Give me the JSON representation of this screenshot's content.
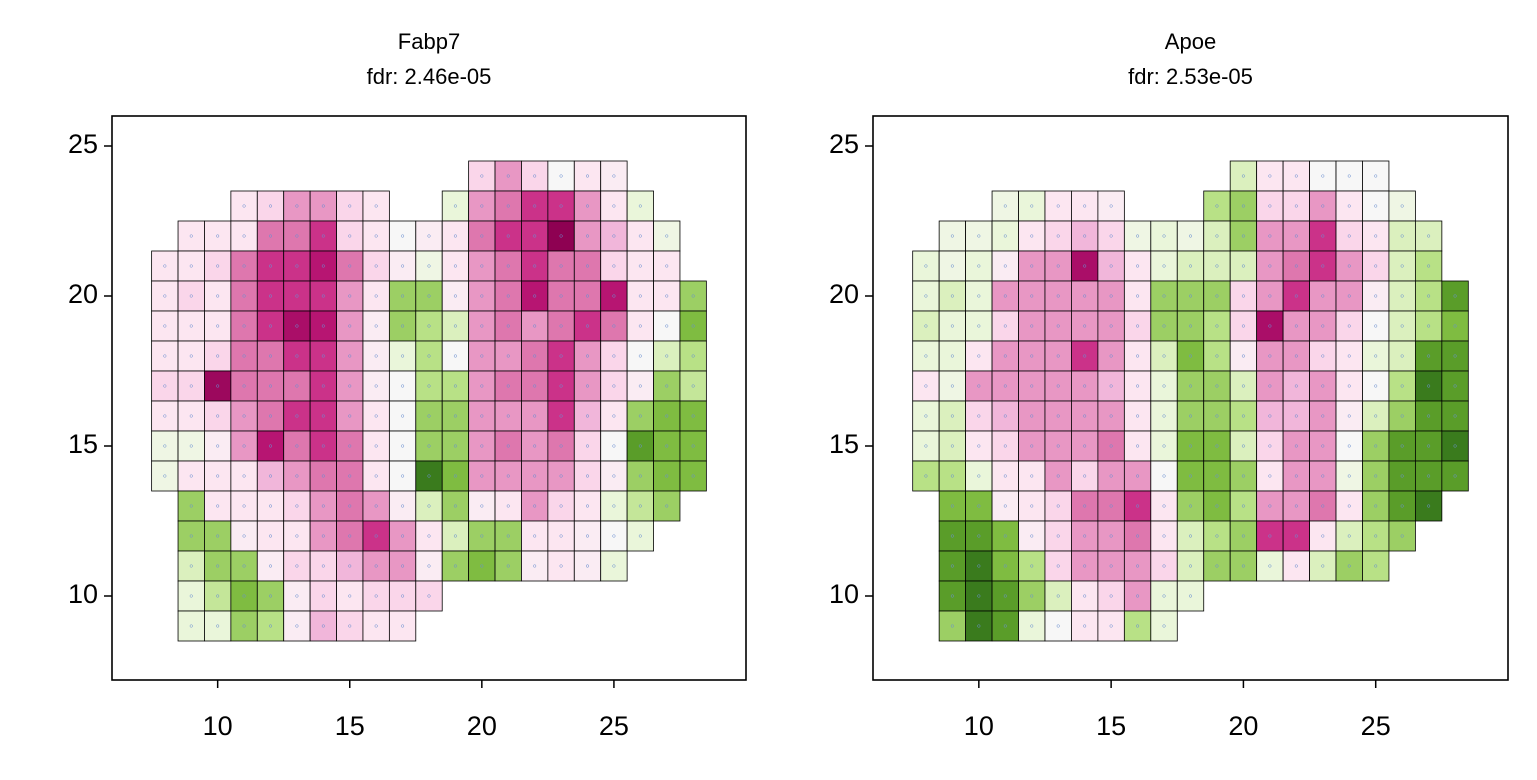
{
  "chart_data": [
    {
      "type": "heatmap",
      "title": "Fabp7",
      "subtitle": "fdr: 2.46e-05",
      "cmap": "PiYG",
      "vlim": [
        -2,
        2
      ],
      "xlim": [
        6,
        30
      ],
      "ylim": [
        7.2,
        26
      ],
      "xticks": [
        10,
        15,
        20,
        25
      ],
      "yticks": [
        10,
        15,
        20,
        25
      ],
      "x": [
        8,
        9,
        10,
        11,
        12,
        13,
        14,
        15,
        16,
        17,
        18,
        19,
        20,
        21,
        22,
        23,
        24,
        25,
        26,
        27,
        28
      ],
      "y": [
        24,
        23,
        22,
        21,
        20,
        19,
        18,
        17,
        16,
        15,
        14,
        13,
        12,
        11,
        10,
        9
      ],
      "z": [
        [
          null,
          null,
          null,
          null,
          null,
          null,
          null,
          null,
          null,
          null,
          null,
          null,
          0.5,
          1,
          0.5,
          0,
          0.3,
          0.2,
          null,
          null,
          null
        ],
        [
          null,
          null,
          null,
          0.3,
          0.5,
          1,
          1,
          0.5,
          0.3,
          null,
          null,
          -0.3,
          1,
          1.2,
          1.5,
          1.5,
          1,
          0.3,
          -0.3,
          null,
          null
        ],
        [
          null,
          0.3,
          0.3,
          0.3,
          1.2,
          1.2,
          1.5,
          0.5,
          0.3,
          0,
          0.2,
          0.3,
          1.2,
          1.5,
          1.5,
          2,
          1,
          0.8,
          0.3,
          -0.2,
          null
        ],
        [
          0.3,
          0.3,
          0.5,
          1.2,
          1.5,
          1.5,
          1.7,
          1.2,
          0.5,
          0.2,
          -0.2,
          0.3,
          1,
          1.2,
          1.5,
          1.2,
          1.2,
          0.5,
          0.3,
          0.3,
          null
        ],
        [
          0.3,
          0.5,
          0.3,
          1.2,
          1.5,
          1.5,
          1.5,
          1,
          0.3,
          -1,
          -1,
          0.2,
          1,
          1.2,
          1.7,
          1.2,
          1.2,
          1.7,
          0.3,
          0.3,
          -1
        ],
        [
          0.3,
          0.3,
          0.3,
          1.2,
          1.5,
          1.8,
          1.7,
          1,
          0.2,
          -1,
          -0.8,
          -0.5,
          1,
          1.2,
          1,
          1.2,
          1.5,
          1.2,
          0.3,
          0,
          -1.2
        ],
        [
          0.3,
          0.3,
          0.5,
          1.2,
          1.2,
          1.5,
          1.5,
          1,
          0.2,
          -0.3,
          -0.8,
          0,
          1,
          1,
          1.2,
          1.5,
          1,
          0.5,
          0,
          -0.5,
          -0.8
        ],
        [
          0.5,
          0.5,
          1.9,
          1.2,
          1.2,
          1.2,
          1.5,
          1,
          0.2,
          0,
          -0.8,
          -0.8,
          1,
          1.2,
          1.2,
          1.5,
          1,
          0.5,
          0.2,
          -1,
          -0.7
        ],
        [
          0.3,
          0.3,
          0.5,
          1,
          1.2,
          1.5,
          1.5,
          1,
          0.3,
          0,
          -1,
          -1,
          1,
          1,
          1,
          1.5,
          0.8,
          0.3,
          -1,
          -1.2,
          -1.2
        ],
        [
          -0.2,
          -0.2,
          0.2,
          1,
          1.7,
          1.2,
          1.5,
          1.2,
          0.3,
          0,
          -1,
          -1,
          1,
          1.2,
          1,
          1.2,
          0.5,
          0,
          -1.5,
          -1.2,
          -1.2
        ],
        [
          -0.2,
          0.3,
          0.3,
          0.3,
          0.8,
          1,
          1.2,
          1.2,
          0.3,
          0,
          -1.8,
          -1.2,
          1,
          1,
          1,
          1,
          0.5,
          0.2,
          -1,
          -1.2,
          -1.2
        ],
        [
          null,
          -1,
          0.3,
          0.3,
          0.3,
          0.5,
          1,
          1.2,
          1,
          0.2,
          -0.5,
          -1,
          0.2,
          0.3,
          1,
          0.5,
          0.3,
          -0.3,
          -0.7,
          -1,
          null
        ],
        [
          null,
          -1,
          -1,
          0.2,
          0.3,
          0.3,
          1,
          1.2,
          1.5,
          1,
          0.3,
          -0.5,
          -1,
          -1,
          0.3,
          0.3,
          0.2,
          0,
          -0.3,
          null,
          null
        ],
        [
          null,
          -0.5,
          -1,
          -1,
          0.2,
          0.5,
          0.5,
          0.8,
          1,
          1,
          0.2,
          -1,
          -1.2,
          -1,
          0.2,
          0.3,
          0.2,
          -0.3,
          null,
          null,
          null
        ],
        [
          null,
          -0.3,
          -0.7,
          -1.2,
          -1,
          0.2,
          0.5,
          0.3,
          0.5,
          0.5,
          0.5,
          null,
          null,
          null,
          null,
          null,
          null,
          null,
          null,
          null,
          null
        ],
        [
          null,
          -0.3,
          -0.3,
          -1,
          -0.8,
          0.2,
          0.8,
          0.5,
          0.3,
          0.3,
          null,
          null,
          null,
          null,
          null,
          null,
          null,
          null,
          null,
          null,
          null
        ]
      ]
    },
    {
      "type": "heatmap",
      "title": "Apoe",
      "subtitle": "fdr: 2.53e-05",
      "cmap": "PiYG",
      "vlim": [
        -2,
        2
      ],
      "xlim": [
        6,
        30
      ],
      "ylim": [
        7.2,
        26
      ],
      "xticks": [
        10,
        15,
        20,
        25
      ],
      "yticks": [
        10,
        15,
        20,
        25
      ],
      "x": [
        8,
        9,
        10,
        11,
        12,
        13,
        14,
        15,
        16,
        17,
        18,
        19,
        20,
        21,
        22,
        23,
        24,
        25,
        26,
        27,
        28
      ],
      "y": [
        24,
        23,
        22,
        21,
        20,
        19,
        18,
        17,
        16,
        15,
        14,
        13,
        12,
        11,
        10,
        9
      ],
      "z": [
        [
          null,
          null,
          null,
          null,
          null,
          null,
          null,
          null,
          null,
          null,
          null,
          null,
          -0.5,
          0.3,
          0.3,
          0,
          0,
          0,
          null,
          null,
          null
        ],
        [
          null,
          null,
          null,
          -0.2,
          -0.3,
          0.3,
          0.3,
          0.2,
          null,
          null,
          null,
          -0.8,
          -1,
          0.5,
          0.5,
          1,
          0.3,
          0,
          -0.2,
          null,
          null
        ],
        [
          null,
          -0.2,
          -0.2,
          -0.3,
          0.3,
          0.5,
          0.8,
          0.5,
          -0.2,
          -0.3,
          -0.2,
          -0.5,
          -1,
          1,
          1,
          1.5,
          0.5,
          0.3,
          -0.5,
          -0.5,
          null
        ],
        [
          -0.3,
          -0.2,
          -0.3,
          0.2,
          1,
          1,
          1.8,
          0.8,
          0.3,
          -0.3,
          -0.5,
          -0.5,
          -0.5,
          1,
          1.2,
          1.5,
          1,
          0.5,
          -0.5,
          -0.8,
          null
        ],
        [
          -0.3,
          -0.5,
          -0.3,
          1,
          1,
          1,
          1,
          1,
          0.3,
          -1,
          -1,
          -1,
          0.5,
          1,
          1.5,
          1,
          1,
          0.2,
          -0.5,
          -0.8,
          -1.5
        ],
        [
          -0.5,
          -0.3,
          -0.3,
          0.5,
          1,
          1,
          1,
          1,
          0.5,
          -1,
          -1,
          -0.8,
          0.5,
          1.8,
          1,
          1,
          0.5,
          0,
          -0.5,
          -0.8,
          -1.2
        ],
        [
          -0.3,
          -0.3,
          0.3,
          1,
          1,
          1,
          1.5,
          1,
          0.3,
          -0.5,
          -1.2,
          -0.8,
          0.2,
          1,
          1,
          0.5,
          0.3,
          -0.3,
          -0.5,
          -1.5,
          -1.5
        ],
        [
          0.3,
          -0.2,
          1,
          1,
          1,
          1,
          1,
          0.8,
          0.3,
          -0.3,
          -1,
          -1,
          -0.5,
          1,
          0.8,
          1,
          0.3,
          0,
          -0.8,
          -1.8,
          -1.5
        ],
        [
          -0.3,
          -0.5,
          0.5,
          0.8,
          1,
          1,
          1,
          1,
          0.3,
          -0.3,
          -1,
          -1,
          -0.8,
          0.8,
          0.8,
          1,
          0.2,
          -0.5,
          -1,
          -1.5,
          -1.5
        ],
        [
          -0.3,
          -0.5,
          0.3,
          0.5,
          1,
          1,
          1,
          1.2,
          0.3,
          -0.3,
          -1.2,
          -1.2,
          -0.5,
          0.5,
          1,
          1,
          0,
          -1,
          -1.5,
          -1.5,
          -1.8
        ],
        [
          -0.8,
          -0.8,
          -0.3,
          0.3,
          0.3,
          1,
          0.5,
          1,
          1,
          0,
          -1.2,
          -1.2,
          -1,
          0.3,
          1,
          1,
          -0.2,
          -1,
          -1.5,
          -1.5,
          -1.5
        ],
        [
          null,
          -1.2,
          -1.2,
          0.2,
          0.3,
          0.5,
          1.2,
          1.2,
          1.5,
          0.3,
          -1,
          -1.2,
          -0.8,
          1,
          1,
          1.2,
          0.3,
          -1,
          -1.5,
          -1.8,
          null
        ],
        [
          null,
          -1.5,
          -1.5,
          -1.2,
          0.2,
          0.5,
          1,
          1,
          1.2,
          0.3,
          -0.5,
          -0.8,
          -1,
          1.5,
          1.5,
          0.3,
          -0.5,
          -0.8,
          -1,
          null,
          null
        ],
        [
          null,
          -1.5,
          -1.8,
          -1.2,
          -0.8,
          0.5,
          1,
          1,
          1,
          0.5,
          -0.5,
          -1,
          -1,
          -0.3,
          0.3,
          -0.5,
          -1,
          -0.8,
          null,
          null,
          null
        ],
        [
          null,
          -1.5,
          -1.8,
          -1.5,
          -1,
          -0.5,
          0.3,
          0.5,
          1,
          -0.3,
          -0.3,
          null,
          null,
          null,
          null,
          null,
          null,
          null,
          null,
          null,
          null
        ],
        [
          null,
          -1,
          -1.8,
          -1.5,
          -0.3,
          0,
          0.3,
          0.3,
          -0.8,
          -0.3,
          null,
          null,
          null,
          null,
          null,
          null,
          null,
          null,
          null,
          null,
          null
        ]
      ]
    }
  ]
}
